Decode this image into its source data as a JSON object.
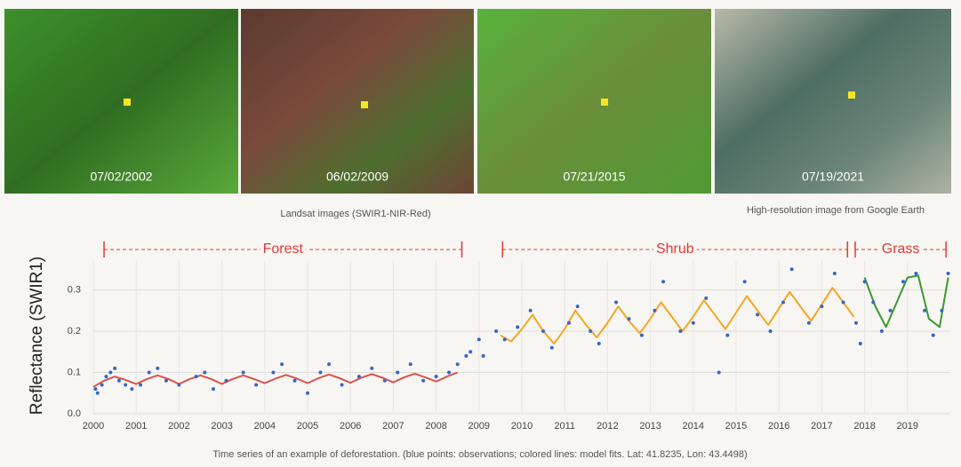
{
  "images": [
    {
      "date": "07/02/2002"
    },
    {
      "date": "06/02/2009"
    },
    {
      "date": "07/21/2015"
    },
    {
      "date": "07/19/2021"
    }
  ],
  "landsat_caption": "Landsat images (SWIR1-NIR-Red)",
  "google_caption": "High-resolution image from Google Earth",
  "chart_data": {
    "type": "scatter",
    "ylabel": "Reflectance (SWIR1)",
    "caption": "Time series of an example of deforestation. (blue points: observations; colored lines: model fits. Lat: 41.8235, Lon: 43.4498)",
    "xlim": [
      2000,
      2020
    ],
    "xticks": [
      2000,
      2001,
      2002,
      2003,
      2004,
      2005,
      2006,
      2007,
      2008,
      2009,
      2010,
      2011,
      2012,
      2013,
      2014,
      2015,
      2016,
      2017,
      2018,
      2019
    ],
    "ylim": [
      0,
      0.37
    ],
    "yticks": [
      {
        "value": 0,
        "label": "0.0"
      },
      0.1,
      0.2,
      0.3
    ],
    "grid": true,
    "regions": [
      {
        "label": "Forest",
        "from": 2000.25,
        "to": 2008.6,
        "color": "#e53935"
      },
      {
        "label": "Shrub",
        "from": 2009.55,
        "to": 2017.6,
        "color": "#e53935"
      },
      {
        "label": "Grass",
        "from": 2017.78,
        "to": 2019.9,
        "color": "#e53935"
      }
    ],
    "series": [
      {
        "type": "scatter",
        "color": "#3566cc",
        "x": [
          2000.05,
          2000.1,
          2000.2,
          2000.3,
          2000.4,
          2000.5,
          2000.6,
          2000.75,
          2000.9,
          2001.1,
          2001.3,
          2001.5,
          2001.7,
          2002.0,
          2002.4,
          2002.6,
          2002.8,
          2003.1,
          2003.5,
          2003.8,
          2004.2,
          2004.4,
          2004.7,
          2005.0,
          2005.3,
          2005.5,
          2005.8,
          2006.2,
          2006.5,
          2006.8,
          2007.1,
          2007.4,
          2007.7,
          2008.0,
          2008.3,
          2008.5,
          2008.7,
          2008.8,
          2009.0,
          2009.1,
          2009.4,
          2009.6,
          2009.9,
          2010.2,
          2010.5,
          2010.7,
          2011.1,
          2011.3,
          2011.6,
          2011.8,
          2012.2,
          2012.5,
          2012.8,
          2013.1,
          2013.3,
          2013.7,
          2014.0,
          2014.3,
          2014.6,
          2014.8,
          2015.2,
          2015.5,
          2015.8,
          2016.1,
          2016.3,
          2016.7,
          2017.0,
          2017.3,
          2017.5,
          2017.8,
          2017.9,
          2018.0,
          2018.2,
          2018.4,
          2018.6,
          2018.9,
          2019.2,
          2019.4,
          2019.6,
          2019.8,
          2019.95
        ],
        "values": [
          0.06,
          0.05,
          0.07,
          0.09,
          0.1,
          0.11,
          0.08,
          0.07,
          0.06,
          0.07,
          0.1,
          0.11,
          0.08,
          0.07,
          0.09,
          0.1,
          0.06,
          0.08,
          0.1,
          0.07,
          0.1,
          0.12,
          0.08,
          0.05,
          0.1,
          0.12,
          0.07,
          0.09,
          0.11,
          0.08,
          0.1,
          0.12,
          0.08,
          0.09,
          0.1,
          0.12,
          0.14,
          0.15,
          0.18,
          0.14,
          0.2,
          0.18,
          0.21,
          0.25,
          0.2,
          0.16,
          0.22,
          0.26,
          0.2,
          0.17,
          0.27,
          0.23,
          0.19,
          0.25,
          0.32,
          0.2,
          0.22,
          0.28,
          0.1,
          0.19,
          0.32,
          0.24,
          0.2,
          0.27,
          0.35,
          0.22,
          0.26,
          0.34,
          0.27,
          0.22,
          0.17,
          0.32,
          0.27,
          0.2,
          0.25,
          0.32,
          0.34,
          0.25,
          0.19,
          0.25,
          0.34
        ]
      },
      {
        "type": "line",
        "color": "#d9534f",
        "x": [
          2000,
          2000.25,
          2000.5,
          2000.75,
          2001,
          2001.25,
          2001.5,
          2001.75,
          2002,
          2002.25,
          2002.5,
          2002.75,
          2003,
          2003.25,
          2003.5,
          2003.75,
          2004,
          2004.25,
          2004.5,
          2004.75,
          2005,
          2005.25,
          2005.5,
          2005.75,
          2006,
          2006.25,
          2006.5,
          2006.75,
          2007,
          2007.25,
          2007.5,
          2007.75,
          2008,
          2008.25,
          2008.5
        ],
        "values": [
          0.065,
          0.08,
          0.09,
          0.082,
          0.072,
          0.084,
          0.093,
          0.084,
          0.072,
          0.084,
          0.093,
          0.084,
          0.072,
          0.084,
          0.093,
          0.084,
          0.074,
          0.085,
          0.094,
          0.085,
          0.074,
          0.086,
          0.095,
          0.086,
          0.075,
          0.087,
          0.096,
          0.087,
          0.076,
          0.088,
          0.097,
          0.088,
          0.078,
          0.09,
          0.1
        ]
      },
      {
        "type": "line",
        "color": "#f5a623",
        "x": [
          2009.5,
          2009.75,
          2010,
          2010.25,
          2010.5,
          2010.75,
          2011,
          2011.25,
          2011.5,
          2011.75,
          2012,
          2012.25,
          2012.5,
          2012.75,
          2013,
          2013.25,
          2013.5,
          2013.75,
          2014,
          2014.25,
          2014.5,
          2014.75,
          2015,
          2015.25,
          2015.5,
          2015.75,
          2016,
          2016.25,
          2016.5,
          2016.75,
          2017,
          2017.25,
          2017.5,
          2017.75
        ],
        "values": [
          0.19,
          0.175,
          0.205,
          0.24,
          0.2,
          0.17,
          0.205,
          0.25,
          0.215,
          0.185,
          0.22,
          0.26,
          0.225,
          0.195,
          0.23,
          0.27,
          0.235,
          0.2,
          0.235,
          0.275,
          0.24,
          0.205,
          0.245,
          0.285,
          0.25,
          0.215,
          0.255,
          0.295,
          0.26,
          0.225,
          0.265,
          0.305,
          0.27,
          0.235
        ]
      },
      {
        "type": "line",
        "color": "#3a9a2f",
        "x": [
          2018,
          2018.25,
          2018.5,
          2018.75,
          2019,
          2019.25,
          2019.5,
          2019.75,
          2019.95
        ],
        "values": [
          0.33,
          0.26,
          0.21,
          0.27,
          0.33,
          0.335,
          0.23,
          0.21,
          0.33
        ]
      }
    ]
  }
}
